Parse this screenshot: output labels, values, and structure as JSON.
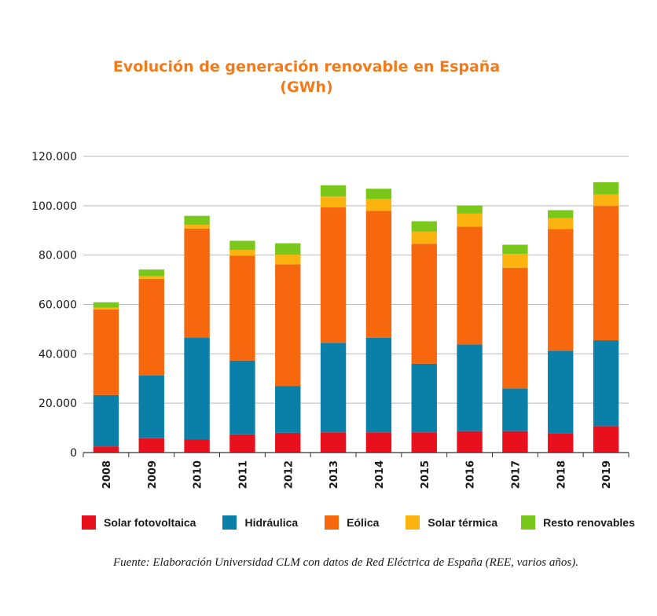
{
  "chart_data": {
    "type": "bar",
    "stacked": true,
    "title_line1": "Evolución de generación renovable en España",
    "title_line2": "(GWh)",
    "categories": [
      "2008",
      "2009",
      "2010",
      "2011",
      "2012",
      "2013",
      "2014",
      "2015",
      "2016",
      "2017",
      "2018",
      "2019"
    ],
    "ylim": [
      0,
      120000
    ],
    "yticks": [
      0,
      20000,
      40000,
      60000,
      80000,
      100000,
      120000
    ],
    "ytick_labels": [
      "0",
      "20.000",
      "40.000",
      "60.000",
      "80.000",
      "100.000",
      "120.000"
    ],
    "grid": true,
    "legend_position": "bottom",
    "series": [
      {
        "name": "Solar fotovoltaica",
        "color": "#e8101c",
        "values": [
          2500,
          5800,
          5400,
          7400,
          8000,
          8200,
          8200,
          8200,
          8700,
          8700,
          7900,
          10700
        ]
      },
      {
        "name": "Hidráulica",
        "color": "#0a80a8",
        "values": [
          20800,
          25400,
          41200,
          29900,
          18900,
          36300,
          38300,
          27800,
          35100,
          17300,
          33400,
          34800
        ]
      },
      {
        "name": "Eólica",
        "color": "#f7680e",
        "values": [
          34700,
          39200,
          44200,
          42500,
          49400,
          54800,
          51400,
          48600,
          47700,
          48900,
          49300,
          54400
        ]
      },
      {
        "name": "Solar térmica",
        "color": "#fbb310",
        "values": [
          700,
          1000,
          1500,
          2300,
          3900,
          4400,
          4900,
          5000,
          5300,
          5600,
          4300,
          4600
        ]
      },
      {
        "name": "Resto renovables",
        "color": "#7ac81c",
        "values": [
          2200,
          2800,
          3600,
          3700,
          4600,
          4600,
          4100,
          4100,
          3300,
          3700,
          3300,
          5000
        ]
      }
    ]
  },
  "source": "Fuente: Elaboración Universidad CLM con datos de Red Eléctrica de España (REE, varios años)."
}
